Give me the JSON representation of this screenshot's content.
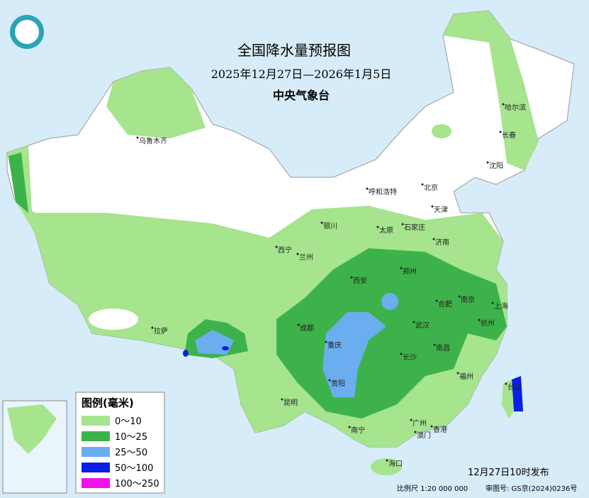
{
  "header": {
    "title": "全国降水量预报图",
    "period": "2025年12月27日—2026年1月5日",
    "agency": "中央气象台"
  },
  "legend": {
    "title": "图例(毫米)",
    "items": [
      {
        "label": "0～10",
        "color": "#a6e48e"
      },
      {
        "label": "10～25",
        "color": "#3db24b"
      },
      {
        "label": "25～50",
        "color": "#6aaef0"
      },
      {
        "label": "50～100",
        "color": "#0a1ee6"
      },
      {
        "label": "100～250",
        "color": "#f010e8"
      }
    ]
  },
  "cities": [
    "乌鲁木齐",
    "哈尔滨",
    "长春",
    "沈阳",
    "呼和浩特",
    "北京",
    "天津",
    "石家庄",
    "太原",
    "银川",
    "济南",
    "西宁",
    "兰州",
    "西安",
    "郑州",
    "合肥",
    "南京",
    "上海",
    "杭州",
    "成都",
    "武汉",
    "拉萨",
    "重庆",
    "长沙",
    "南昌",
    "贵阳",
    "福州",
    "台北",
    "昆明",
    "南宁",
    "广州",
    "澳门",
    "香港",
    "海口"
  ],
  "footer": {
    "issued": "12月27日10时发布",
    "scale": "比例尺 1:20 000 000",
    "map_number": "审图号: GS京(2024)0236号"
  }
}
